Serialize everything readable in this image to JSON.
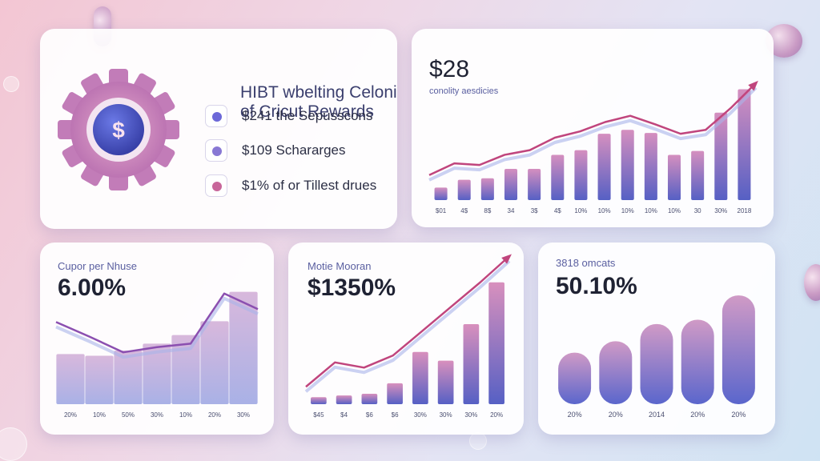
{
  "colors": {
    "indigo": "#5660c4",
    "pink": "#d98db3",
    "mauve": "#b46ea8",
    "lavender": "#9aa4e0",
    "accent": "#c0457d"
  },
  "rewards_card": {
    "title_line1": "HIBT wbelting Celonis",
    "title_line2": "of Cricut Rewards",
    "icon": "dollar-gear-icon",
    "items": [
      {
        "text": "$241 the Sepusscons",
        "dot_color": "#6c68d8"
      },
      {
        "text": "$109 Schararges",
        "dot_color": "#8878d4"
      },
      {
        "text": "$1% of or Tillest drues",
        "dot_color": "#c8669a"
      }
    ]
  },
  "chart_data": [
    {
      "type": "bar",
      "title": "$28",
      "subtitle": "conolity aesdicies",
      "categories": [
        "$01",
        "4$",
        "8$",
        "34",
        "3$",
        "4$",
        "10%",
        "10%",
        "10%",
        "10%",
        "10%",
        "30",
        "30%",
        "2018"
      ],
      "values": [
        16,
        26,
        28,
        40,
        40,
        58,
        64,
        85,
        90,
        86,
        58,
        63,
        112,
        142
      ],
      "ylim": [
        0,
        160
      ],
      "line": [
        32,
        47,
        45,
        58,
        64,
        80,
        88,
        100,
        108,
        97,
        85,
        90,
        118,
        150
      ]
    },
    {
      "type": "bar",
      "title": "Cupor per Nhuse",
      "value_label": "6.00%",
      "categories": [
        "20%",
        "10%",
        "50%",
        "30%",
        "10%",
        "20%",
        "30%"
      ],
      "values": [
        58,
        56,
        62,
        70,
        80,
        96,
        130
      ],
      "ylim": [
        0,
        150
      ],
      "line": [
        95,
        78,
        60,
        66,
        70,
        128,
        110
      ]
    },
    {
      "type": "bar",
      "title": "Motie Mooran",
      "value_label": "$1350%",
      "categories": [
        "$45",
        "$4",
        "$6",
        "$6",
        "30%",
        "30%",
        "30%",
        "20%"
      ],
      "values": [
        8,
        10,
        12,
        24,
        60,
        50,
        92,
        140
      ],
      "ylim": [
        0,
        160
      ],
      "line": [
        20,
        48,
        42,
        56,
        84,
        112,
        140,
        170
      ]
    },
    {
      "type": "bar",
      "title": "3818 omcats",
      "value_label": "50.10%",
      "categories": [
        "20%",
        "20%",
        "2014",
        "20%",
        "20%"
      ],
      "values": [
        72,
        88,
        112,
        118,
        152
      ],
      "ylim": [
        0,
        170
      ]
    }
  ]
}
